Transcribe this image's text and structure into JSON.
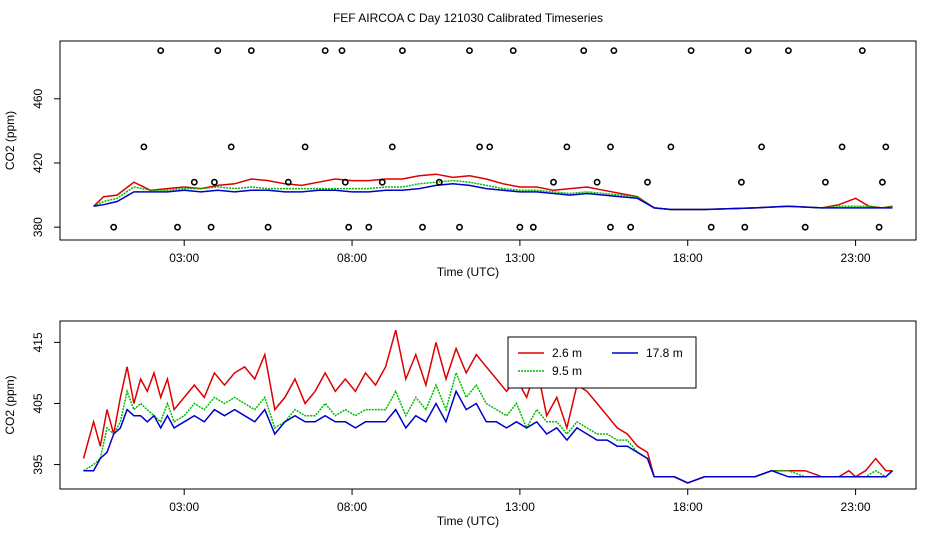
{
  "figure_title": "FEF AIRCOA C  Day 121030  Calibrated Timeseries",
  "colors": {
    "s1": "#dd0000",
    "s2": "#00bb00",
    "s3": "#0000cc",
    "axis": "#000000"
  },
  "chart_data": [
    {
      "type": "line",
      "title": "FEF AIRCOA C  Day 121030  Calibrated Timeseries",
      "xlabel": "Time (UTC)",
      "ylabel": "CO2 (ppm)",
      "xlim": [
        -0.7,
        24.8
      ],
      "ylim": [
        372,
        496
      ],
      "xticks": [
        3,
        8,
        13,
        18,
        23
      ],
      "xtick_labels": [
        "03:00",
        "08:00",
        "13:00",
        "18:00",
        "23:00"
      ],
      "yticks": [
        380,
        420,
        460
      ],
      "ytick_labels": [
        "380",
        "420",
        "460"
      ],
      "grid": false,
      "series": [
        {
          "name": "2.6 m",
          "color": "#dd0000",
          "dash": false,
          "x": [
            0.3,
            0.6,
            1.0,
            1.5,
            2.0,
            2.5,
            3.0,
            3.5,
            4.0,
            4.5,
            5.0,
            5.5,
            6.0,
            6.5,
            7.0,
            7.5,
            8.0,
            8.5,
            9.0,
            9.5,
            10.0,
            10.5,
            11.0,
            11.5,
            12.0,
            12.5,
            13.0,
            13.5,
            14.0,
            14.5,
            15.0,
            15.5,
            16.0,
            16.5,
            17.0,
            17.5,
            18.5,
            20.0,
            21.0,
            22.0,
            22.5,
            23.0,
            23.4,
            23.8,
            24.1
          ],
          "y": [
            393,
            399,
            400,
            408,
            403,
            404,
            405,
            404,
            406,
            407,
            410,
            409,
            407,
            406,
            408,
            410,
            409,
            409,
            410,
            410,
            412,
            413,
            411,
            412,
            410,
            407,
            405,
            405,
            403,
            404,
            405,
            403,
            401,
            399,
            392,
            391,
            391,
            392,
            393,
            392,
            394,
            398,
            393,
            392,
            393
          ]
        },
        {
          "name": "9.5 m",
          "color": "#00bb00",
          "dash": true,
          "x": [
            0.3,
            0.6,
            1.0,
            1.5,
            2.0,
            2.5,
            3.0,
            3.5,
            4.0,
            4.5,
            5.0,
            5.5,
            6.0,
            6.5,
            7.0,
            7.5,
            8.0,
            8.5,
            9.0,
            9.5,
            10.0,
            10.5,
            11.0,
            11.5,
            12.0,
            12.5,
            13.0,
            13.5,
            14.0,
            14.5,
            15.0,
            15.5,
            16.0,
            16.5,
            17.0,
            17.5,
            18.5,
            20.0,
            21.0,
            22.0,
            22.5,
            23.0,
            23.4,
            23.8,
            24.1
          ],
          "y": [
            393,
            396,
            398,
            405,
            403,
            403,
            404,
            404,
            405,
            404,
            405,
            404,
            404,
            404,
            404,
            404,
            404,
            404,
            405,
            405,
            407,
            408,
            409,
            408,
            406,
            404,
            403,
            403,
            402,
            401,
            402,
            401,
            400,
            399,
            392,
            391,
            391,
            392,
            393,
            392,
            393,
            393,
            393,
            392,
            393
          ]
        },
        {
          "name": "17.8 m",
          "color": "#0000cc",
          "dash": false,
          "x": [
            0.3,
            0.6,
            1.0,
            1.5,
            2.0,
            2.5,
            3.0,
            3.5,
            4.0,
            4.5,
            5.0,
            5.5,
            6.0,
            6.5,
            7.0,
            7.5,
            8.0,
            8.5,
            9.0,
            9.5,
            10.0,
            10.5,
            11.0,
            11.5,
            12.0,
            12.5,
            13.0,
            13.5,
            14.0,
            14.5,
            15.0,
            15.5,
            16.0,
            16.5,
            17.0,
            17.5,
            18.5,
            20.0,
            21.0,
            22.0,
            22.5,
            23.0,
            23.4,
            23.8,
            24.1
          ],
          "y": [
            393,
            394,
            396,
            402,
            402,
            402,
            403,
            402,
            403,
            402,
            403,
            403,
            402,
            402,
            403,
            403,
            402,
            402,
            403,
            403,
            404,
            406,
            407,
            406,
            404,
            403,
            402,
            402,
            401,
            400,
            401,
            400,
            399,
            398,
            392,
            391,
            391,
            392,
            393,
            392,
            392,
            392,
            392,
            392,
            392
          ]
        }
      ],
      "calibration_points": {
        "x": [
          0.9,
          1.8,
          2.3,
          2.8,
          3.3,
          3.8,
          3.9,
          4.0,
          4.4,
          5.0,
          5.5,
          6.1,
          6.6,
          7.2,
          7.7,
          7.8,
          7.9,
          8.5,
          8.9,
          9.2,
          9.5,
          10.1,
          10.6,
          11.2,
          11.5,
          11.8,
          12.1,
          12.8,
          13.0,
          13.4,
          14.0,
          14.4,
          14.9,
          15.3,
          15.7,
          15.7,
          15.8,
          16.3,
          16.8,
          17.5,
          18.1,
          18.7,
          19.6,
          19.7,
          19.8,
          20.2,
          21.0,
          21.5,
          22.1,
          22.6,
          23.2,
          23.7,
          23.8,
          23.9
        ],
        "y": [
          380,
          430,
          490,
          380,
          408,
          380,
          408,
          490,
          430,
          490,
          380,
          408,
          430,
          490,
          490,
          408,
          380,
          380,
          408,
          430,
          490,
          380,
          408,
          380,
          490,
          430,
          430,
          490,
          380,
          380,
          408,
          430,
          490,
          408,
          380,
          430,
          490,
          380,
          408,
          430,
          490,
          380,
          408,
          380,
          490,
          430,
          490,
          380,
          408,
          430,
          490,
          380,
          408,
          430
        ]
      }
    },
    {
      "type": "line",
      "title": "",
      "xlabel": "Time (UTC)",
      "ylabel": "CO2 (ppm)",
      "xlim": [
        -0.7,
        24.8
      ],
      "ylim": [
        391,
        418.5
      ],
      "xticks": [
        3,
        8,
        13,
        18,
        23
      ],
      "xtick_labels": [
        "03:00",
        "08:00",
        "13:00",
        "18:00",
        "23:00"
      ],
      "yticks": [
        395,
        405,
        415
      ],
      "ytick_labels": [
        "395",
        "405",
        "415"
      ],
      "grid": false,
      "legend": {
        "position": "top-right",
        "columns": 2
      },
      "series": [
        {
          "name": "2.6 m",
          "color": "#dd0000",
          "dash": false,
          "x": [
            0.0,
            0.3,
            0.5,
            0.7,
            0.9,
            1.1,
            1.3,
            1.5,
            1.7,
            1.9,
            2.1,
            2.3,
            2.5,
            2.7,
            3.0,
            3.3,
            3.6,
            3.9,
            4.2,
            4.5,
            4.8,
            5.1,
            5.4,
            5.7,
            6.0,
            6.3,
            6.6,
            6.9,
            7.2,
            7.5,
            7.8,
            8.1,
            8.4,
            8.7,
            9.0,
            9.3,
            9.6,
            9.9,
            10.2,
            10.5,
            10.8,
            11.1,
            11.4,
            11.7,
            12.0,
            12.3,
            12.6,
            12.9,
            13.2,
            13.5,
            13.8,
            14.1,
            14.4,
            14.7,
            15.0,
            15.3,
            15.6,
            15.9,
            16.2,
            16.5,
            16.8,
            17.0,
            17.3,
            17.6,
            18.0,
            18.5,
            19.0,
            19.5,
            20.0,
            20.5,
            21.0,
            21.5,
            22.0,
            22.5,
            22.8,
            23.0,
            23.3,
            23.6,
            23.9,
            24.1
          ],
          "y": [
            396,
            402,
            398,
            404,
            400,
            406,
            411,
            405,
            409,
            407,
            410,
            406,
            409,
            404,
            406,
            408,
            406,
            410,
            408,
            410,
            411,
            409,
            413,
            404,
            406,
            409,
            405,
            407,
            410,
            407,
            409,
            407,
            410,
            408,
            411,
            417,
            409,
            413,
            408,
            415,
            409,
            414,
            410,
            413,
            411,
            409,
            407,
            409,
            406,
            411,
            403,
            406,
            401,
            408,
            407,
            405,
            403,
            401,
            400,
            398,
            397,
            393,
            393,
            393,
            392,
            393,
            393,
            393,
            393,
            394,
            394,
            394,
            393,
            393,
            394,
            393,
            394,
            396,
            394,
            394
          ]
        },
        {
          "name": "9.5 m",
          "color": "#00bb00",
          "dash": true,
          "x": [
            0.0,
            0.3,
            0.5,
            0.7,
            0.9,
            1.1,
            1.3,
            1.5,
            1.7,
            1.9,
            2.1,
            2.3,
            2.5,
            2.7,
            3.0,
            3.3,
            3.6,
            3.9,
            4.2,
            4.5,
            4.8,
            5.1,
            5.4,
            5.7,
            6.0,
            6.3,
            6.6,
            6.9,
            7.2,
            7.5,
            7.8,
            8.1,
            8.4,
            8.7,
            9.0,
            9.3,
            9.6,
            9.9,
            10.2,
            10.5,
            10.8,
            11.1,
            11.4,
            11.7,
            12.0,
            12.3,
            12.6,
            12.9,
            13.2,
            13.5,
            13.8,
            14.1,
            14.4,
            14.7,
            15.0,
            15.3,
            15.6,
            15.9,
            16.2,
            16.5,
            16.8,
            17.0,
            17.3,
            17.6,
            18.0,
            18.5,
            19.0,
            19.5,
            20.0,
            20.5,
            21.0,
            21.5,
            22.0,
            22.5,
            22.8,
            23.0,
            23.3,
            23.6,
            23.9,
            24.1
          ],
          "y": [
            394,
            395,
            396,
            401,
            400,
            402,
            407,
            404,
            405,
            404,
            403,
            402,
            405,
            402,
            403,
            405,
            404,
            406,
            405,
            406,
            405,
            404,
            406,
            401,
            402,
            404,
            403,
            403,
            405,
            403,
            404,
            403,
            404,
            404,
            404,
            407,
            403,
            406,
            404,
            408,
            404,
            410,
            406,
            408,
            405,
            404,
            403,
            405,
            401,
            404,
            402,
            402,
            400,
            402,
            401,
            400,
            400,
            399,
            399,
            397,
            396,
            393,
            393,
            393,
            392,
            393,
            393,
            393,
            393,
            394,
            394,
            393,
            393,
            393,
            393,
            393,
            393,
            394,
            393,
            394
          ]
        },
        {
          "name": "17.8 m",
          "color": "#0000cc",
          "dash": false,
          "x": [
            0.0,
            0.3,
            0.5,
            0.7,
            0.9,
            1.1,
            1.3,
            1.5,
            1.7,
            1.9,
            2.1,
            2.3,
            2.5,
            2.7,
            3.0,
            3.3,
            3.6,
            3.9,
            4.2,
            4.5,
            4.8,
            5.1,
            5.4,
            5.7,
            6.0,
            6.3,
            6.6,
            6.9,
            7.2,
            7.5,
            7.8,
            8.1,
            8.4,
            8.7,
            9.0,
            9.3,
            9.6,
            9.9,
            10.2,
            10.5,
            10.8,
            11.1,
            11.4,
            11.7,
            12.0,
            12.3,
            12.6,
            12.9,
            13.2,
            13.5,
            13.8,
            14.1,
            14.4,
            14.7,
            15.0,
            15.3,
            15.6,
            15.9,
            16.2,
            16.5,
            16.8,
            17.0,
            17.3,
            17.6,
            18.0,
            18.5,
            19.0,
            19.5,
            20.0,
            20.5,
            21.0,
            21.5,
            22.0,
            22.5,
            22.8,
            23.0,
            23.3,
            23.6,
            23.9,
            24.1
          ],
          "y": [
            394,
            394,
            396,
            397,
            400,
            401,
            404,
            403,
            403,
            402,
            403,
            401,
            403,
            401,
            402,
            403,
            402,
            404,
            403,
            404,
            403,
            402,
            404,
            400,
            402,
            403,
            402,
            402,
            403,
            402,
            402,
            401,
            402,
            402,
            402,
            404,
            401,
            403,
            402,
            405,
            402,
            407,
            404,
            405,
            402,
            402,
            401,
            402,
            401,
            402,
            400,
            401,
            399,
            401,
            400,
            399,
            399,
            398,
            398,
            397,
            396,
            393,
            393,
            393,
            392,
            393,
            393,
            393,
            393,
            394,
            393,
            393,
            393,
            393,
            393,
            393,
            393,
            393,
            393,
            394
          ]
        }
      ]
    }
  ]
}
